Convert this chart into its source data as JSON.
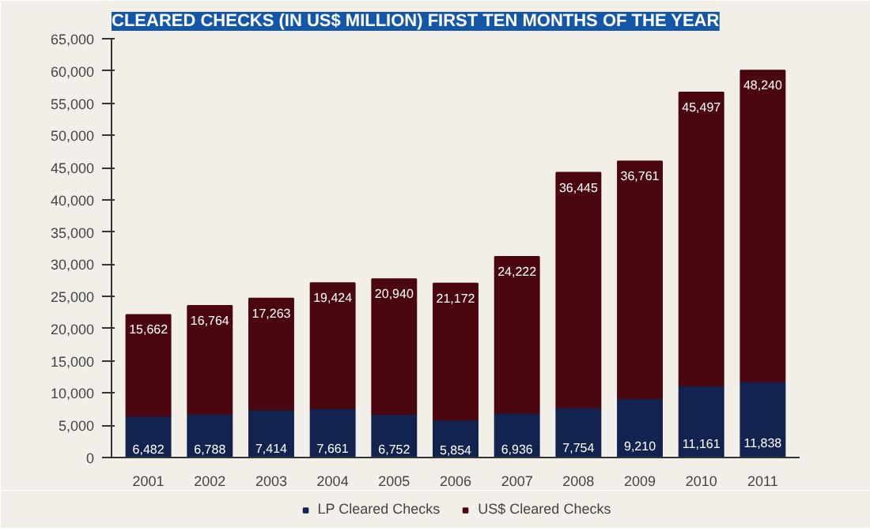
{
  "chart_data": {
    "type": "bar",
    "stacked": true,
    "title": "CLEARED CHECKS (IN US$ MILLION) FIRST TEN MONTHS OF THE YEAR",
    "categories": [
      "2001",
      "2002",
      "2003",
      "2004",
      "2005",
      "2006",
      "2007",
      "2008",
      "2009",
      "2010",
      "2011"
    ],
    "series": [
      {
        "name": "LP Cleared Checks",
        "color": "#13234f",
        "values": [
          6482,
          6788,
          7414,
          7661,
          6752,
          5854,
          6936,
          7754,
          9210,
          11161,
          11838
        ],
        "value_labels": [
          "6,482",
          "6,788",
          "7,414",
          "7,661",
          "6,752",
          "5,854",
          "6,936",
          "7,754",
          "9,210",
          "11,161",
          "11,838"
        ]
      },
      {
        "name": "US$ Cleared Checks",
        "color": "#4a0710",
        "values": [
          15662,
          16764,
          17263,
          19424,
          20940,
          21172,
          24222,
          36445,
          36761,
          45497,
          48240
        ],
        "value_labels": [
          "15,662",
          "16,764",
          "17,263",
          "19,424",
          "20,940",
          "21,172",
          "24,222",
          "36,445",
          "36,761",
          "45,497",
          "48,240"
        ]
      }
    ],
    "ylim": [
      0,
      65000
    ],
    "yticks": [
      0,
      {
        "value": 5000,
        "label": "5,000"
      },
      {
        "value": 10000,
        "label": "10,000"
      },
      {
        "value": 15000,
        "label": "15,000"
      },
      {
        "value": 20000,
        "label": "20,000"
      },
      {
        "value": 25000,
        "label": "25,000"
      },
      {
        "value": 30000,
        "label": "30,000"
      },
      {
        "value": 35000,
        "label": "35,000"
      },
      {
        "value": 40000,
        "label": "40,000"
      },
      {
        "value": 45000,
        "label": "45,000"
      },
      {
        "value": 50000,
        "label": "50,000"
      },
      {
        "value": 55000,
        "label": "55,000"
      },
      {
        "value": 60000,
        "label": "60,000"
      },
      {
        "value": 65000,
        "label": "65,000"
      }
    ],
    "grid": false,
    "legend": "bottom",
    "data_labels": true
  }
}
